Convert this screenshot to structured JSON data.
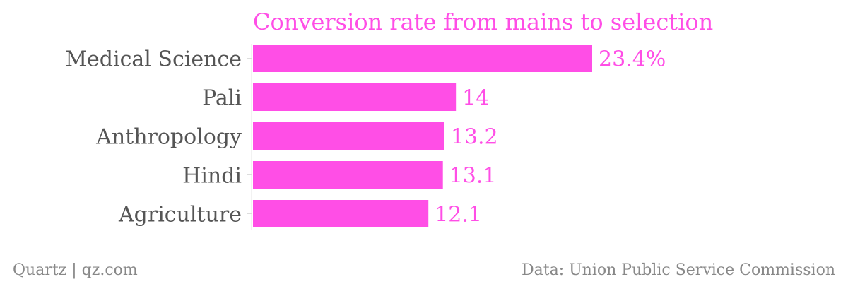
{
  "chart_data": {
    "type": "bar",
    "orientation": "horizontal",
    "title": "Conversion rate from mains to selection",
    "categories": [
      "Medical Science",
      "Pali",
      "Anthropology",
      "Hindi",
      "Agriculture"
    ],
    "values": [
      23.4,
      14,
      13.2,
      13.1,
      12.1
    ],
    "value_labels": [
      "23.4%",
      "14",
      "13.2",
      "13.1",
      "12.1"
    ],
    "xlim": [
      0,
      23.4
    ],
    "grid": false,
    "legend": "none",
    "colors": {
      "bar": "#ff4ee6",
      "title": "#ff4ee6",
      "value_label": "#ff4ee6",
      "category_label": "#555555"
    }
  },
  "footer": {
    "left": "Quartz | qz.com",
    "right": "Data: Union Public Service Commission"
  }
}
